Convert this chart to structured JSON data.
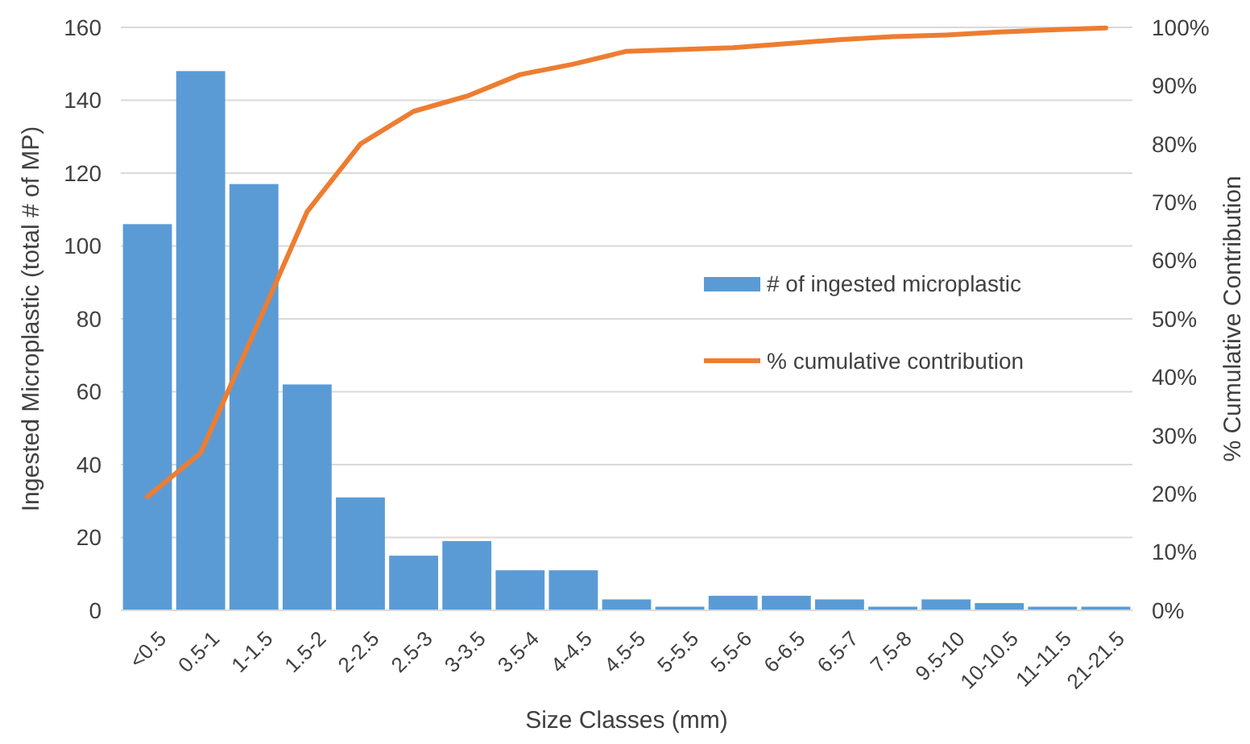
{
  "chart_data": {
    "type": "bar",
    "xlabel": "Size Classes (mm)",
    "ylabel": "Ingested Microplastic  (total # of MP)",
    "y2label": "% Cumulative Contribution",
    "categories": [
      "<0.5",
      "0.5-1",
      "1-1.5",
      "1.5-2",
      "2-2.5",
      "2.5-3",
      "3-3.5",
      "3.5-4",
      "4-4.5",
      "4.5-5",
      "5-5.5",
      "5.5-6",
      "6-6.5",
      "6.5-7",
      "7.5-8",
      "9.5-10",
      "10-10.5",
      "11-11.5",
      "21-21.5"
    ],
    "series": [
      {
        "name": "# of ingested microplastic",
        "color": "#5b9bd5",
        "values": [
          106,
          148,
          117,
          62,
          31,
          15,
          19,
          11,
          11,
          3,
          1,
          4,
          4,
          3,
          1,
          3,
          2,
          1,
          1
        ]
      },
      {
        "name": "% cumulative contribution",
        "type": "line",
        "axis": "y2",
        "color": "#ed7d31",
        "values": [
          19.5,
          27,
          47.6,
          68.4,
          80,
          85.6,
          88.2,
          91.9,
          93.7,
          95.9,
          96.2,
          96.5,
          97.2,
          97.9,
          98.4,
          98.7,
          99.2,
          99.6,
          99.9
        ]
      }
    ],
    "ylim": [
      0,
      160
    ],
    "yticks": [
      0,
      20,
      40,
      60,
      80,
      100,
      120,
      140,
      160
    ],
    "y2lim": [
      0,
      100
    ],
    "y2ticks": [
      {
        "value": 0,
        "label": "0%"
      },
      {
        "value": 10,
        "label": "10%"
      },
      {
        "value": 20,
        "label": "20%"
      },
      {
        "value": 30,
        "label": "30%"
      },
      {
        "value": 40,
        "label": "40%"
      },
      {
        "value": 50,
        "label": "50%"
      },
      {
        "value": 60,
        "label": "60%"
      },
      {
        "value": 70,
        "label": "70%"
      },
      {
        "value": 80,
        "label": "80%"
      },
      {
        "value": 90,
        "label": "90%"
      },
      {
        "value": 100,
        "label": "100%"
      }
    ],
    "grid": "y",
    "legend": "right",
    "marker": "none"
  }
}
